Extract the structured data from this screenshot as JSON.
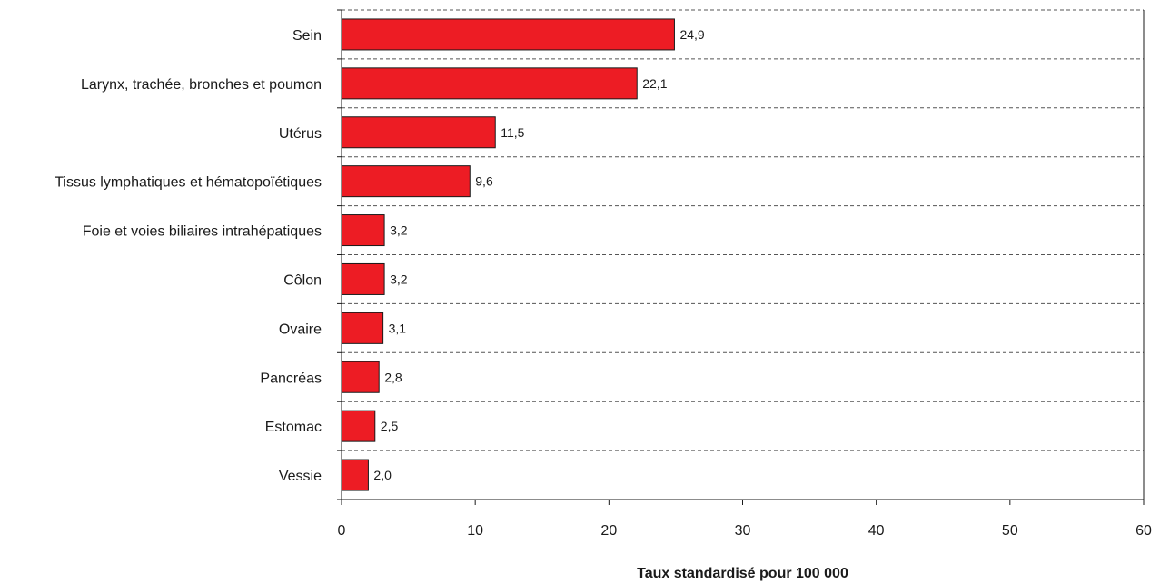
{
  "chart_data": {
    "type": "bar",
    "orientation": "horizontal",
    "title": "",
    "xlabel": "Taux standardisé pour 100 000",
    "ylabel": "",
    "categories": [
      "Sein",
      "Larynx, trachée, bronches et poumon",
      "Utérus",
      "Tissus lymphatiques et hématopoïétiques",
      "Foie et voies biliaires intrahépatiques",
      "Côlon",
      "Ovaire",
      "Pancréas",
      "Estomac",
      "Vessie"
    ],
    "values": [
      24.9,
      22.1,
      11.5,
      9.6,
      3.2,
      3.2,
      3.1,
      2.8,
      2.5,
      2.0
    ],
    "value_labels": [
      "24,9",
      "22,1",
      "11,5",
      "9,6",
      "3,2",
      "3,2",
      "3,1",
      "2,8",
      "2,5",
      "2,0"
    ],
    "xlim": [
      0,
      60
    ],
    "xticks": [
      0,
      10,
      20,
      30,
      40,
      50,
      60
    ],
    "xtick_labels": [
      "0",
      "10",
      "20",
      "30",
      "40",
      "50",
      "60"
    ],
    "grid": "horizontal-dashed",
    "bar_color": "#ed1c24",
    "legend": "none"
  }
}
